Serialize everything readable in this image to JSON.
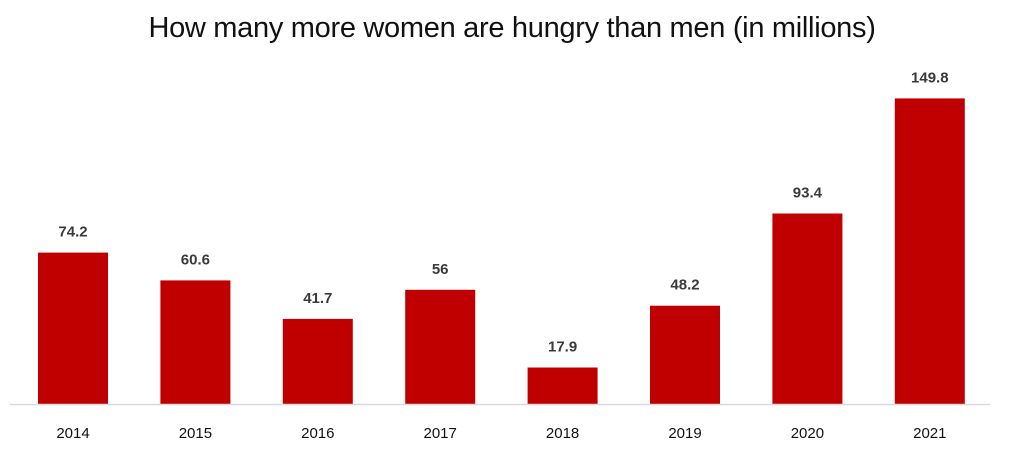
{
  "chart_data": {
    "type": "bar",
    "title": "How many more women are hungry than men (in millions)",
    "categories": [
      "2014",
      "2015",
      "2016",
      "2017",
      "2018",
      "2019",
      "2020",
      "2021"
    ],
    "values": [
      74.2,
      60.6,
      41.7,
      56,
      17.9,
      48.2,
      93.4,
      149.8
    ],
    "value_labels": [
      "74.2",
      "60.6",
      "41.7",
      "56",
      "17.9",
      "48.2",
      "93.4",
      "149.8"
    ],
    "xlabel": "",
    "ylabel": "",
    "ylim": [
      0,
      150
    ],
    "grid": false,
    "bar_color": "#c00000",
    "axis_color": "#d9d9d9"
  }
}
